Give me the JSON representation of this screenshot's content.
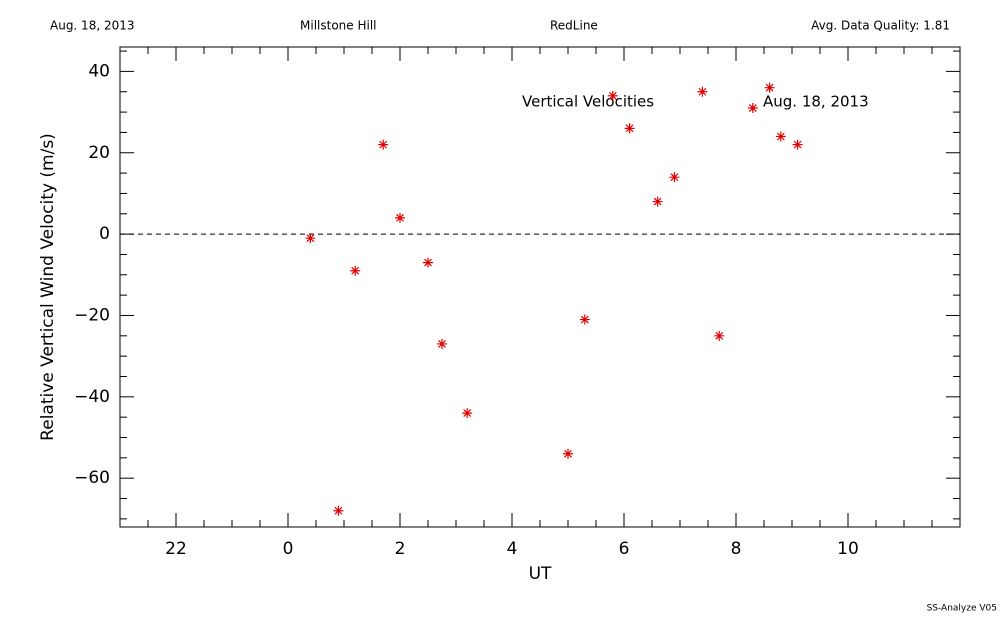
{
  "chart_data": {
    "type": "scatter",
    "header": [
      "Aug. 18, 2013",
      "Millstone Hill",
      "RedLine",
      "Avg. Data Quality: 1.81"
    ],
    "annotations": [
      "Vertical Velocities",
      "Aug. 18, 2013"
    ],
    "footer": "SS-Analyze V05",
    "xlabel": "UT",
    "ylabel": "Relative Vertical Wind Velocity (m/s)",
    "color": "#e00000",
    "x": [
      0.4,
      0.9,
      1.2,
      1.7,
      2.0,
      2.5,
      2.75,
      3.2,
      5.0,
      5.3,
      5.8,
      6.1,
      6.6,
      6.9,
      7.4,
      7.7,
      8.3,
      8.6,
      8.8,
      9.1
    ],
    "values": [
      -1,
      -68,
      -9,
      22,
      4,
      -7,
      -27,
      -44,
      -54,
      -21,
      34,
      26,
      8,
      14,
      35,
      -25,
      31,
      36,
      24,
      22
    ],
    "xlim": [
      -3,
      12
    ],
    "xticks": [
      {
        "value": -2,
        "label": "22"
      },
      0,
      2,
      4,
      6,
      8,
      10
    ],
    "xminorticks": [
      -2.5,
      -1.5,
      -1,
      -0.5,
      0.5,
      1,
      1.5,
      2.5,
      3,
      3.5,
      4.5,
      5,
      5.5,
      6.5,
      7,
      7.5,
      8.5,
      9,
      9.5,
      10.5,
      11,
      11.5
    ],
    "ylim": [
      -72,
      46
    ],
    "yticks": [
      {
        "value": -60,
        "label": "−60"
      },
      {
        "value": -40,
        "label": "−40"
      },
      {
        "value": -20,
        "label": "−20"
      },
      0,
      20,
      40
    ],
    "yminorticks": [
      -70,
      -65,
      -55,
      -50,
      -45,
      -35,
      -30,
      -25,
      -15,
      -10,
      -5,
      5,
      10,
      15,
      25,
      30,
      35,
      45
    ],
    "hline": 0
  }
}
